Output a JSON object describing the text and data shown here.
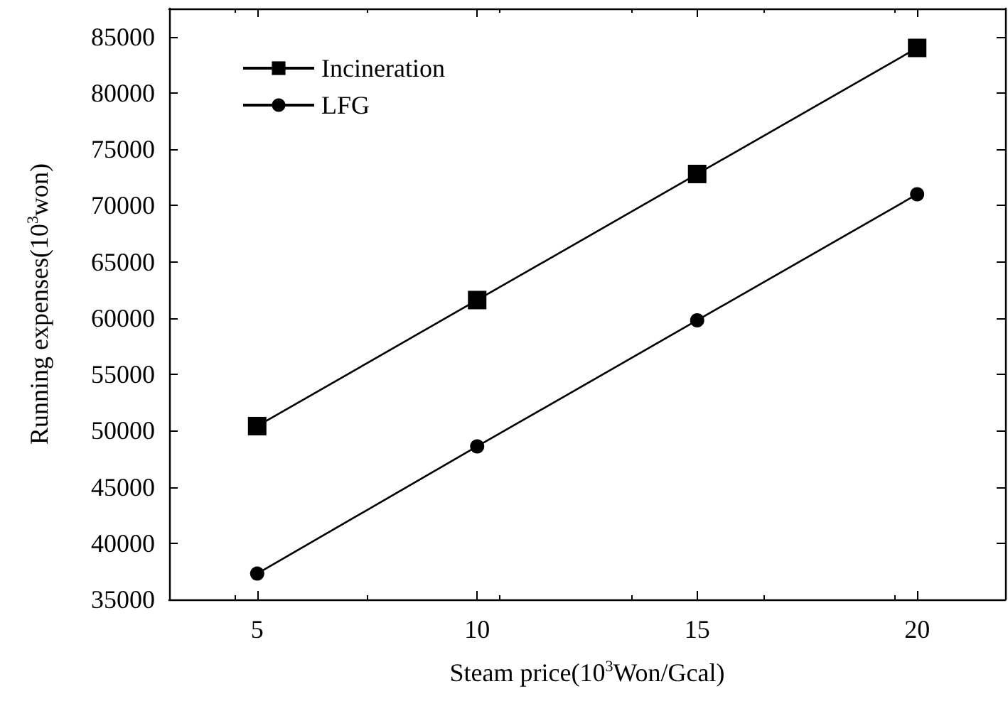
{
  "chart_data": {
    "type": "line",
    "xlabel": "Steam price(10$^{3}$Won/Gcal)",
    "ylabel": "Running expenses(10$^{3}$won)",
    "x": [
      5,
      10,
      15,
      20
    ],
    "series": [
      {
        "name": "Incineration",
        "color": "#000000",
        "marker": "square",
        "values": [
          50400,
          61600,
          72800,
          84000
        ]
      },
      {
        "name": "LFG",
        "color": "#000000",
        "marker": "circle",
        "values": [
          37300,
          48600,
          59800,
          71000
        ]
      }
    ],
    "xlim": [
      3,
      22
    ],
    "xticks": [
      5,
      10,
      15,
      20
    ],
    "ylim": [
      35000,
      87500
    ],
    "yticks": [
      35000,
      40000,
      45000,
      50000,
      55000,
      60000,
      65000,
      70000,
      75000,
      80000,
      85000
    ],
    "grid": false,
    "legend": "top left",
    "line_style": "solid"
  }
}
